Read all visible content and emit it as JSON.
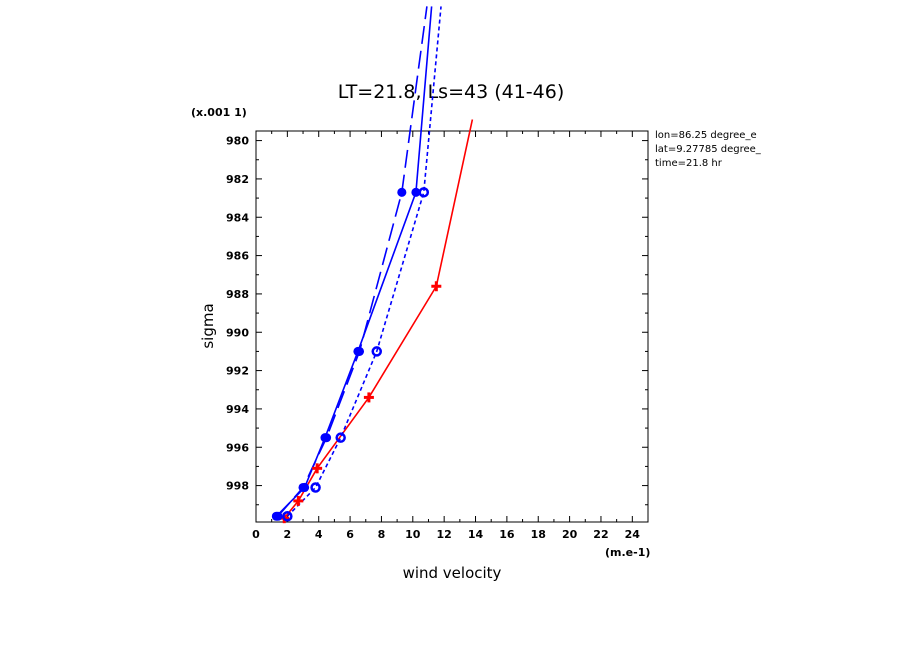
{
  "chart_data": {
    "type": "line",
    "title": "LT=21.8, Ls=43 (41-46)",
    "xlabel": "wind velocity",
    "ylabel": "sigma",
    "x_scale_note": "(m.e-1)",
    "y_scale_note": "(x.001 1)",
    "xlim": [
      0,
      25
    ],
    "ylim": [
      979.5,
      999.9
    ],
    "y_inverted": true,
    "x_ticks": [
      "0",
      "2",
      "4",
      "6",
      "8",
      "10",
      "12",
      "14",
      "16",
      "18",
      "20",
      "22",
      "24"
    ],
    "y_ticks": [
      "980",
      "982",
      "984",
      "986",
      "988",
      "990",
      "992",
      "994",
      "996",
      "998"
    ],
    "annotations": [
      "lon=86.25 degree_e",
      "lat=9.27785 degree_",
      "time=21.8 hr"
    ],
    "grid": false,
    "series": [
      {
        "color": "#ff0000",
        "dash": "solid",
        "marker": "plus",
        "points": [
          [
            1.8,
            999.7
          ],
          [
            2.7,
            998.8
          ],
          [
            3.9,
            997.1
          ],
          [
            7.2,
            993.4
          ],
          [
            11.5,
            987.6
          ],
          [
            13.8,
            978.9
          ]
        ]
      },
      {
        "color": "#0000ff",
        "dash": "solid",
        "marker": "dot",
        "points": [
          [
            1.3,
            999.6
          ],
          [
            3.1,
            998.1
          ],
          [
            4.4,
            995.5
          ],
          [
            6.5,
            991.0
          ],
          [
            10.2,
            982.7
          ],
          [
            11.2,
            973.0
          ]
        ]
      },
      {
        "color": "#0000ff",
        "dash": "long",
        "marker": "dot",
        "points": [
          [
            1.4,
            999.6
          ],
          [
            3.0,
            998.1
          ],
          [
            4.5,
            995.5
          ],
          [
            6.6,
            991.0
          ],
          [
            9.3,
            982.7
          ],
          [
            10.9,
            973.0
          ]
        ]
      },
      {
        "color": "#0000ff",
        "dash": "short",
        "marker": "circle",
        "points": [
          [
            2.0,
            999.6
          ],
          [
            3.8,
            998.1
          ],
          [
            5.4,
            995.5
          ],
          [
            7.7,
            991.0
          ],
          [
            10.7,
            982.7
          ],
          [
            11.8,
            973.0
          ]
        ]
      }
    ]
  }
}
